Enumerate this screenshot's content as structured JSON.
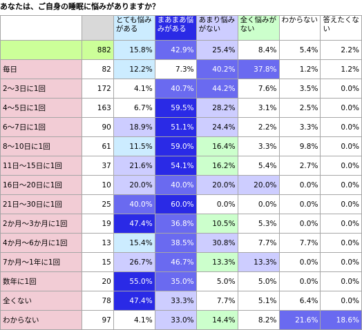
{
  "title": "あなたは、ご自身の睡眠に悩みがありますか？",
  "chart_data": {
    "type": "table",
    "columns": [
      {
        "label": "とても悩みがある",
        "lines": [
          "とても悩み",
          "がある"
        ],
        "header_color": "#ccecff"
      },
      {
        "label": "まあまあ悩みがある",
        "lines": [
          "まあまあ悩",
          "みがある"
        ],
        "header_color": "#2a2ae6"
      },
      {
        "label": "あまり悩みがない",
        "lines": [
          "あまり悩み",
          "がない"
        ],
        "header_color": "#cdcdff"
      },
      {
        "label": "全く悩みがない",
        "lines": [
          "全く悩みが",
          "ない"
        ],
        "header_color": "#ccffcc"
      },
      {
        "label": "わからない",
        "lines": [
          "わからない"
        ],
        "header_color": "#ffffff"
      },
      {
        "label": "答えたくない",
        "lines": [
          "答えたくな",
          "い"
        ],
        "header_color": "#ffffff"
      }
    ],
    "total": {
      "label": "",
      "n": 882,
      "values": [
        15.8,
        42.9,
        25.4,
        8.4,
        5.4,
        2.2
      ]
    },
    "rows": [
      {
        "label": "毎日",
        "n": 82,
        "values": [
          12.2,
          7.3,
          40.2,
          37.8,
          1.2,
          1.2
        ]
      },
      {
        "label": "2～3日に1回",
        "n": 172,
        "values": [
          4.1,
          40.7,
          44.2,
          7.6,
          3.5,
          0.0
        ]
      },
      {
        "label": "4～5日に1回",
        "n": 163,
        "values": [
          6.7,
          59.5,
          28.2,
          3.1,
          2.5,
          0.0
        ]
      },
      {
        "label": "6～7日に1回",
        "n": 90,
        "values": [
          18.9,
          51.1,
          24.4,
          2.2,
          3.3,
          0.0
        ]
      },
      {
        "label": "8～10日に1回",
        "n": 61,
        "values": [
          11.5,
          59.0,
          16.4,
          3.3,
          9.8,
          0.0
        ]
      },
      {
        "label": "11日～15日に1回",
        "n": 37,
        "values": [
          21.6,
          54.1,
          16.2,
          5.4,
          2.7,
          0.0
        ]
      },
      {
        "label": "16日～20日に1回",
        "n": 10,
        "values": [
          20.0,
          40.0,
          20.0,
          20.0,
          0.0,
          0.0
        ]
      },
      {
        "label": "21日～30日に1回",
        "n": 25,
        "values": [
          40.0,
          60.0,
          0.0,
          0.0,
          0.0,
          0.0
        ]
      },
      {
        "label": "2か月～3か月に1回",
        "n": 19,
        "values": [
          47.4,
          36.8,
          10.5,
          5.3,
          0.0,
          0.0
        ]
      },
      {
        "label": "4か月～6か月に1回",
        "n": 13,
        "values": [
          15.4,
          38.5,
          30.8,
          7.7,
          7.7,
          0.0
        ]
      },
      {
        "label": "7か月～1年に1回",
        "n": 15,
        "values": [
          26.7,
          46.7,
          13.3,
          13.3,
          0.0,
          0.0
        ]
      },
      {
        "label": "数年に1回",
        "n": 20,
        "values": [
          55.0,
          35.0,
          5.0,
          5.0,
          0.0,
          0.0
        ]
      },
      {
        "label": "全くない",
        "n": 78,
        "values": [
          47.4,
          33.3,
          7.7,
          5.1,
          6.4,
          0.0
        ]
      },
      {
        "label": "わからない",
        "n": 97,
        "values": [
          4.1,
          33.0,
          14.4,
          8.2,
          21.6,
          18.6
        ]
      }
    ],
    "colors": {
      "row_label_bg": "#f2ccd5",
      "total_row_bg": "#ccff99",
      "header_plain_bg": "#ffffff",
      "heat_low": "#ffffff",
      "heat_light_blue": "#ccecff",
      "heat_lavender": "#cdcdff",
      "heat_blue": "#6a6af0",
      "heat_dark_blue": "#2a2ae6",
      "heat_light_green": "#ccffcc",
      "heat_green": "#99e699"
    }
  }
}
